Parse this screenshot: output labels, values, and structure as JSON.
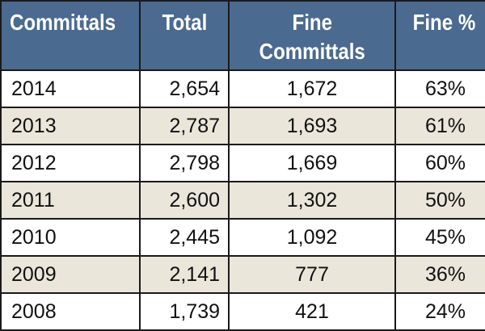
{
  "table": {
    "headers": {
      "committals": "Committals",
      "total": "Total",
      "fine_line1": "Fine",
      "fine_line2": "Committals",
      "fine_pct": "Fine %"
    },
    "rows": [
      {
        "year": "2014",
        "total": "2,654",
        "fine": "1,672",
        "pct": "63%"
      },
      {
        "year": "2013",
        "total": "2,787",
        "fine": "1,693",
        "pct": "61%"
      },
      {
        "year": "2012",
        "total": "2,798",
        "fine": "1,669",
        "pct": "60%"
      },
      {
        "year": "2011",
        "total": "2,600",
        "fine": "1,302",
        "pct": "50%"
      },
      {
        "year": "2010",
        "total": "2,445",
        "fine": "1,092",
        "pct": "45%"
      },
      {
        "year": "2009",
        "total": "2,141",
        "fine": "777",
        "pct": "36%"
      },
      {
        "year": "2008",
        "total": "1,739",
        "fine": "421",
        "pct": "24%"
      }
    ]
  },
  "colors": {
    "header_bg": "#4b6a90",
    "header_text": "#ffffff",
    "shaded_row_bg": "#eae6da",
    "border": "#1a1a1a"
  }
}
